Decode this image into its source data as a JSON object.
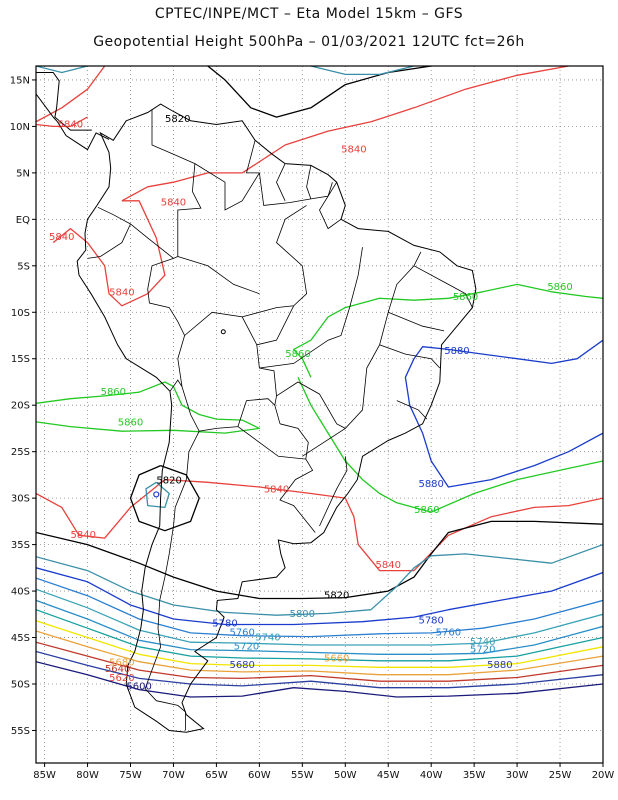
{
  "header": {
    "line1": "CPTEC/INPE/MCT –  Eta Model 15km – GFS",
    "line2": "Geopotential Height 500hPa – 01/03/2021 12UTC fct=26h"
  },
  "map": {
    "lon_range": [
      -86,
      -20
    ],
    "lat_range": [
      -58.5,
      16.5
    ],
    "lon_ticks": [
      "85W",
      "80W",
      "75W",
      "70W",
      "65W",
      "60W",
      "55W",
      "50W",
      "45W",
      "40W",
      "35W",
      "30W",
      "25W",
      "20W"
    ],
    "lat_ticks": [
      "15N",
      "10N",
      "5N",
      "EQ",
      "5S",
      "10S",
      "15S",
      "20S",
      "25S",
      "30S",
      "35S",
      "40S",
      "45S",
      "50S",
      "55S"
    ],
    "grid": "dotted",
    "colors": {
      "c5600": "#1a1a7a",
      "c5620": "#2a3fa0",
      "c5640": "#c0392b",
      "c5660": "#e9a23b",
      "c5680": "#f2e600",
      "c5700": "#14a0a0",
      "c5720": "#2a8fc7",
      "c5740": "#3aa3b8",
      "c5760": "#2a7fd0",
      "c5780": "#1a3ccc",
      "c5800": "#3a8fa8",
      "c5820": "#000000",
      "c5840": "#e8413c",
      "c5860": "#22c922",
      "c5880": "#1a3ccc",
      "land": "#000000"
    }
  },
  "contour_labels": [
    {
      "text": "5820",
      "lon": -69.5,
      "lat": 10.5,
      "color": "#000000"
    },
    {
      "text": "5840",
      "lon": -82,
      "lat": 9.9,
      "color": "#e8413c"
    },
    {
      "text": "5840",
      "lon": -49,
      "lat": 7.2,
      "color": "#e8413c"
    },
    {
      "text": "5840",
      "lon": -70,
      "lat": 1.5,
      "color": "#e8413c"
    },
    {
      "text": "5840",
      "lon": -83,
      "lat": -2.2,
      "color": "#e8413c"
    },
    {
      "text": "5840",
      "lon": -76,
      "lat": -8.2,
      "color": "#e8413c"
    },
    {
      "text": "5860",
      "lon": -36,
      "lat": -8.7,
      "color": "#22c922"
    },
    {
      "text": "5860",
      "lon": -25,
      "lat": -7.6,
      "color": "#22c922"
    },
    {
      "text": "5860",
      "lon": -55.5,
      "lat": -14.8,
      "color": "#22c922"
    },
    {
      "text": "5880",
      "lon": -37,
      "lat": -14.5,
      "color": "#1a3ccc"
    },
    {
      "text": "5860",
      "lon": -77,
      "lat": -18.9,
      "color": "#22c922"
    },
    {
      "text": "5860",
      "lon": -75,
      "lat": -22.2,
      "color": "#22c922"
    },
    {
      "text": "5880",
      "lon": -40,
      "lat": -28.8,
      "color": "#1a3ccc"
    },
    {
      "text": "5820",
      "lon": -70.5,
      "lat": -28.4,
      "color": "#000000"
    },
    {
      "text": "5840",
      "lon": -58,
      "lat": -29.4,
      "color": "#e8413c"
    },
    {
      "text": "5860",
      "lon": -40.5,
      "lat": -31.6,
      "color": "#22c922"
    },
    {
      "text": "5840",
      "lon": -80.5,
      "lat": -34.3,
      "color": "#e8413c"
    },
    {
      "text": "5840",
      "lon": -45,
      "lat": -37.5,
      "color": "#e8413c"
    },
    {
      "text": "5820",
      "lon": -51,
      "lat": -40.8,
      "color": "#000000"
    },
    {
      "text": "5800",
      "lon": -55,
      "lat": -42.8,
      "color": "#3a8fa8"
    },
    {
      "text": "5780",
      "lon": -64,
      "lat": -43.8,
      "color": "#1a3ccc"
    },
    {
      "text": "5780",
      "lon": -40,
      "lat": -43.5,
      "color": "#1a3ccc"
    },
    {
      "text": "5760",
      "lon": -62,
      "lat": -44.8,
      "color": "#2a7fd0"
    },
    {
      "text": "5760",
      "lon": -38,
      "lat": -44.8,
      "color": "#2a7fd0"
    },
    {
      "text": "5740",
      "lon": -59,
      "lat": -45.3,
      "color": "#3aa3b8"
    },
    {
      "text": "5740",
      "lon": -34,
      "lat": -45.8,
      "color": "#3aa3b8"
    },
    {
      "text": "5720",
      "lon": -61.5,
      "lat": -46.3,
      "color": "#2a8fc7"
    },
    {
      "text": "5720",
      "lon": -34,
      "lat": -46.6,
      "color": "#2a8fc7"
    },
    {
      "text": "5680",
      "lon": -76,
      "lat": -48.0,
      "color": "#e9a23b"
    },
    {
      "text": "5640",
      "lon": -76.5,
      "lat": -48.7,
      "color": "#c0392b"
    },
    {
      "text": "5660",
      "lon": -51,
      "lat": -47.6,
      "color": "#e9a23b"
    },
    {
      "text": "5680",
      "lon": -62,
      "lat": -48.3,
      "color": "#2a3fa0"
    },
    {
      "text": "5880",
      "lon": -32,
      "lat": -48.3,
      "color": "#2a3fa0"
    },
    {
      "text": "5620",
      "lon": -76,
      "lat": -49.7,
      "color": "#e8413c"
    },
    {
      "text": "5600",
      "lon": -74,
      "lat": -50.6,
      "color": "#1a1a7a"
    }
  ]
}
